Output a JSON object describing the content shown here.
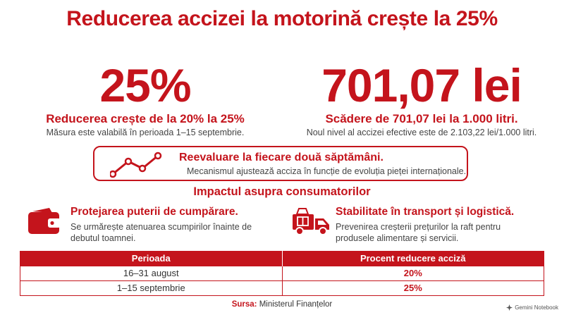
{
  "title": "Reducerea accizei la motorină crește la 25%",
  "stats": [
    {
      "big": "25%",
      "subtitle": "Reducerea crește de la 20% la 25%",
      "description": "Măsura este valabilă în perioada 1–15 septembrie."
    },
    {
      "big": "701,07 lei",
      "subtitle": "Scădere de 701,07 lei la 1.000 litri.",
      "description": "Noul nivel al accizei efective este de 2.103,22 lei/1.000 litri."
    }
  ],
  "reevaluation": {
    "title": "Reevaluare la fiecare două săptămâni.",
    "description": "Mecanismul ajustează acciza în funcție de evoluția pieței internaționale.",
    "icon": "trend-line-icon"
  },
  "impact_heading": "Impactul asupra consumatorilor",
  "features": [
    {
      "icon": "wallet-icon",
      "title": "Protejarea puterii de cumpărare.",
      "description": "Se urmărește atenuarea scumpirilor înainte de debutul toamnei."
    },
    {
      "icon": "delivery-truck-icon",
      "title": "Stabilitate în transport și logistică.",
      "description": "Prevenirea creșterii prețurilor la raft pentru produsele alimentare și servicii."
    }
  ],
  "table": {
    "headers": [
      "Perioada",
      "Procent reducere acciză"
    ],
    "rows": [
      [
        "16–31 august",
        "20%"
      ],
      [
        "1–15 septembrie",
        "25%"
      ]
    ]
  },
  "source": {
    "label": "Sursa:",
    "value": "Ministerul Finanțelor"
  },
  "brand": "Gemini Notebook",
  "colors": {
    "accent": "#c4141c",
    "text": "#3a3a3a",
    "background": "#ffffff"
  }
}
